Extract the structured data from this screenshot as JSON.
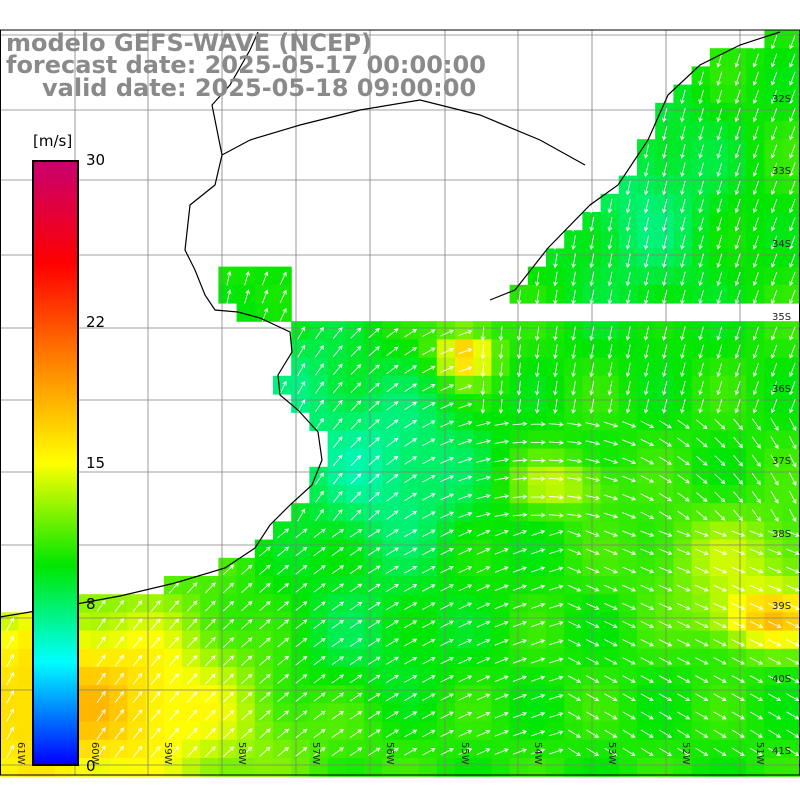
{
  "title": {
    "model": "modelo GEFS-WAVE (NCEP)",
    "forecast": "forecast date: 2025-05-17 00:00:00",
    "valid": "valid date: 2025-05-18 09:00:00"
  },
  "colorbar": {
    "unit": "[m/s]",
    "ticks": [
      "30",
      "22",
      "15",
      "8",
      "0"
    ],
    "tick_values": [
      30,
      22,
      15,
      8,
      0
    ],
    "range": [
      0,
      30
    ],
    "colors": [
      "#0000ff",
      "#00ffff",
      "#00e600",
      "#ffff00",
      "#ff8000",
      "#ff0000",
      "#c8006e"
    ]
  },
  "map": {
    "lat_labels": [
      "32S",
      "33S",
      "34S",
      "35S",
      "36S",
      "37S",
      "38S",
      "39S",
      "40S",
      "41S"
    ],
    "lon_labels": [
      "61W",
      "60W",
      "59W",
      "58W",
      "57W",
      "56W",
      "55W",
      "54W",
      "53W",
      "52W",
      "51W"
    ],
    "land_color": "#ffffff",
    "grid_color": "#808080",
    "coast_color": "#000000",
    "arrow_color": "#ffffff"
  }
}
